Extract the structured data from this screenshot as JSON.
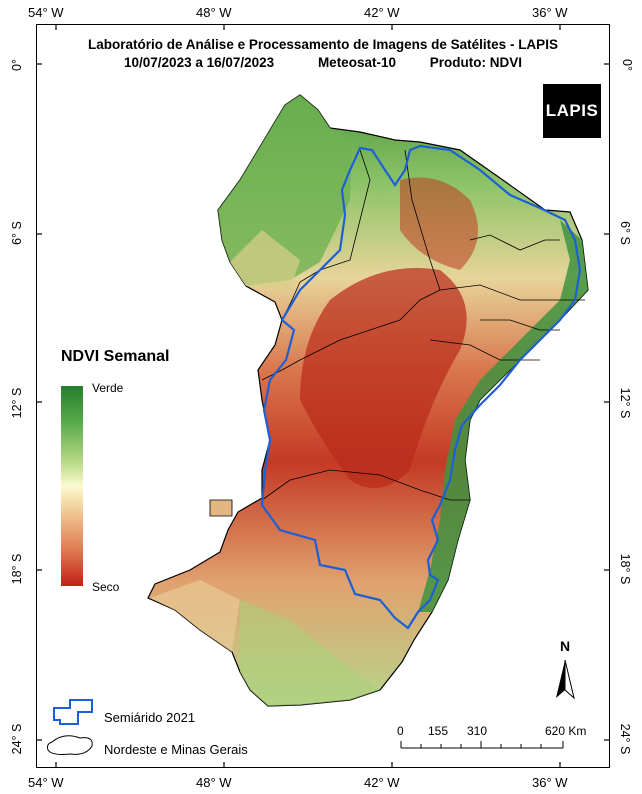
{
  "header": {
    "line1": "Laboratório de Análise e Processamento de Imagens de Satélites - LAPIS",
    "dates": "10/07/2023  a  16/07/2023",
    "satellite": "Meteosat-10",
    "product": "Produto: NDVI"
  },
  "logo_text": "LAPIS",
  "axes": {
    "top": [
      "54° W",
      "48° W",
      "42° W",
      "36° W"
    ],
    "bottom": [
      "54° W",
      "48° W",
      "42° W",
      "36° W"
    ],
    "left": [
      "0°",
      "6° S",
      "12° S",
      "18° S",
      "24° S"
    ],
    "right": [
      "0°",
      "6° S",
      "12° S",
      "18° S",
      "24° S"
    ]
  },
  "legend": {
    "title": "NDVI Semanal",
    "top_label": "Verde",
    "bottom_label": "Seco",
    "colors": {
      "high": "#267d2e",
      "mid": "#fbfbd0",
      "low": "#c01f16"
    },
    "semiarid_label": "Semiárido 2021",
    "region_label": "Nordeste e Minas Gerais",
    "semiarid_color": "#1e5fd6"
  },
  "scale": {
    "ticks": [
      "0",
      "155",
      "310",
      "620 Km"
    ]
  },
  "north": "N"
}
